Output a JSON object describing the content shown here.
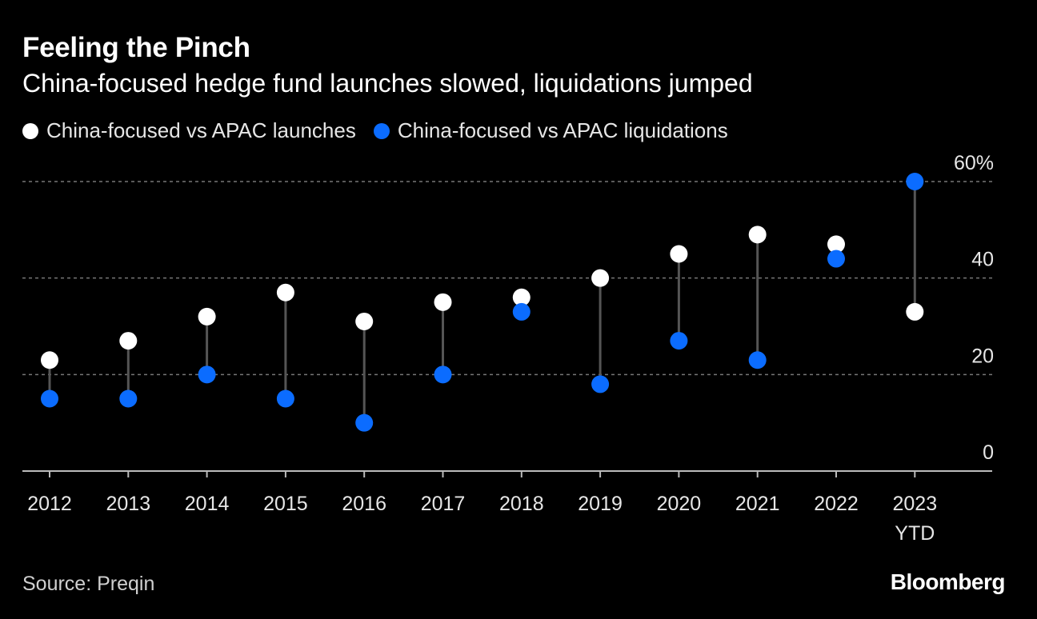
{
  "header": {
    "title": "Feeling the Pinch",
    "subtitle": "China-focused hedge fund launches slowed, liquidations jumped"
  },
  "legend": {
    "launches_label": "China-focused vs APAC launches",
    "liquidations_label": "China-focused vs APAC liquidations"
  },
  "footer": {
    "source": "Source: Preqin",
    "brand": "Bloomberg"
  },
  "colors": {
    "background": "#000000",
    "launches": "#ffffff",
    "liquidations": "#0b6cff",
    "connector": "#555555",
    "grid": "#777777"
  },
  "chart_data": {
    "type": "dot-range",
    "title": "Feeling the Pinch",
    "subtitle": "China-focused hedge fund launches slowed, liquidations jumped",
    "categories": [
      "2012",
      "2013",
      "2014",
      "2015",
      "2016",
      "2017",
      "2018",
      "2019",
      "2020",
      "2021",
      "2022",
      "2023"
    ],
    "category_sublabels": [
      "",
      "",
      "",
      "",
      "",
      "",
      "",
      "",
      "",
      "",
      "",
      "YTD"
    ],
    "series": [
      {
        "name": "China-focused vs APAC launches",
        "values": [
          23,
          27,
          32,
          37,
          31,
          35,
          36,
          40,
          45,
          49,
          47,
          33
        ]
      },
      {
        "name": "China-focused vs APAC liquidations",
        "values": [
          15,
          15,
          20,
          15,
          10,
          20,
          33,
          18,
          27,
          23,
          44,
          60
        ]
      }
    ],
    "ylim": [
      0,
      60
    ],
    "yticks": [
      0,
      20,
      40,
      60
    ],
    "ytick_labels": [
      "0",
      "20",
      "40",
      "60%"
    ],
    "grid": true,
    "legend_position": "top-left"
  }
}
